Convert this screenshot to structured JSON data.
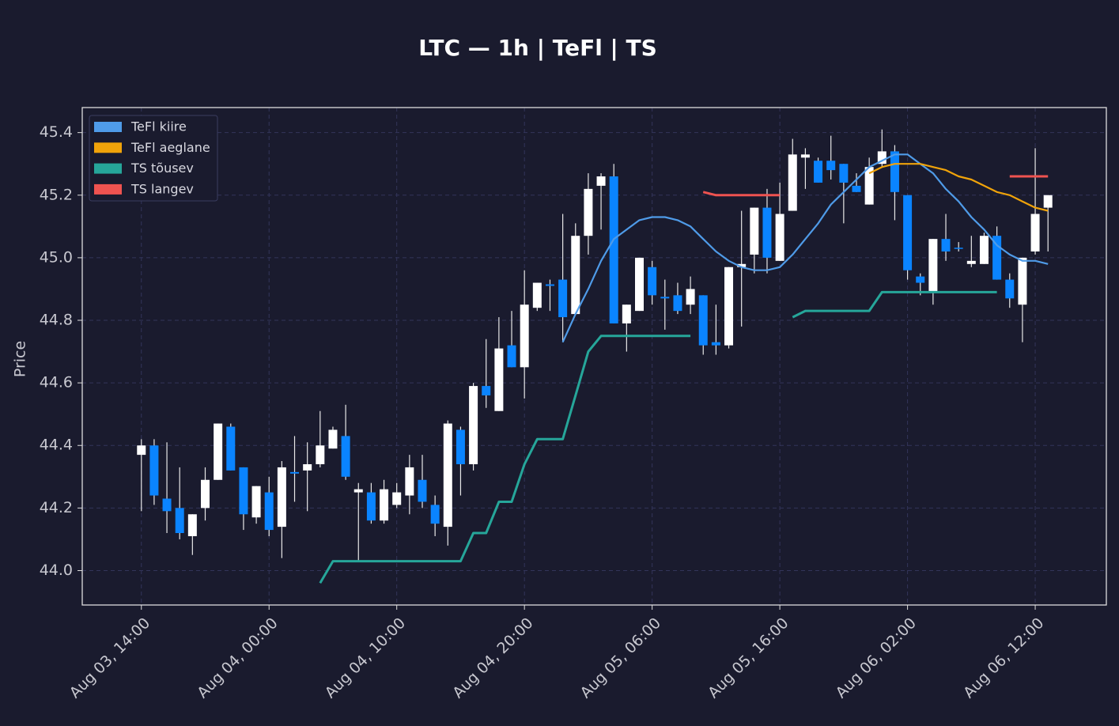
{
  "chart_data": {
    "type": "candlestick",
    "title": "LTC — 1h  |  TeFl  |  TS",
    "ylabel": "Price",
    "x": [
      "Aug 03, 14:00",
      "Aug 03, 15:00",
      "Aug 03, 16:00",
      "Aug 03, 17:00",
      "Aug 03, 18:00",
      "Aug 03, 19:00",
      "Aug 03, 20:00",
      "Aug 03, 21:00",
      "Aug 03, 22:00",
      "Aug 03, 23:00",
      "Aug 04, 00:00",
      "Aug 04, 01:00",
      "Aug 04, 02:00",
      "Aug 04, 03:00",
      "Aug 04, 04:00",
      "Aug 04, 05:00",
      "Aug 04, 06:00",
      "Aug 04, 07:00",
      "Aug 04, 08:00",
      "Aug 04, 09:00",
      "Aug 04, 10:00",
      "Aug 04, 11:00",
      "Aug 04, 12:00",
      "Aug 04, 13:00",
      "Aug 04, 14:00",
      "Aug 04, 15:00",
      "Aug 04, 16:00",
      "Aug 04, 17:00",
      "Aug 04, 18:00",
      "Aug 04, 19:00",
      "Aug 04, 20:00",
      "Aug 04, 21:00",
      "Aug 04, 22:00",
      "Aug 04, 23:00",
      "Aug 05, 00:00",
      "Aug 05, 01:00",
      "Aug 05, 02:00",
      "Aug 05, 03:00",
      "Aug 05, 04:00",
      "Aug 05, 05:00",
      "Aug 05, 06:00",
      "Aug 05, 07:00",
      "Aug 05, 08:00",
      "Aug 05, 09:00",
      "Aug 05, 10:00",
      "Aug 05, 11:00",
      "Aug 05, 12:00",
      "Aug 05, 13:00",
      "Aug 05, 14:00",
      "Aug 05, 15:00",
      "Aug 05, 16:00",
      "Aug 05, 17:00",
      "Aug 05, 18:00",
      "Aug 05, 19:00",
      "Aug 05, 20:00",
      "Aug 05, 21:00",
      "Aug 05, 22:00",
      "Aug 05, 23:00",
      "Aug 06, 00:00",
      "Aug 06, 01:00",
      "Aug 06, 02:00",
      "Aug 06, 03:00",
      "Aug 06, 04:00",
      "Aug 06, 05:00",
      "Aug 06, 06:00",
      "Aug 06, 07:00",
      "Aug 06, 08:00",
      "Aug 06, 09:00",
      "Aug 06, 10:00",
      "Aug 06, 11:00",
      "Aug 06, 12:00",
      "Aug 06, 13:00"
    ],
    "open": [
      44.37,
      44.4,
      44.23,
      44.2,
      44.11,
      44.2,
      44.29,
      44.46,
      44.33,
      44.17,
      44.25,
      44.14,
      44.315,
      44.32,
      44.34,
      44.39,
      44.43,
      44.25,
      44.25,
      44.16,
      44.21,
      44.24,
      44.29,
      44.21,
      44.14,
      44.45,
      44.34,
      44.59,
      44.51,
      44.72,
      44.65,
      44.84,
      44.915,
      44.93,
      44.82,
      45.07,
      45.23,
      45.26,
      44.79,
      44.83,
      44.97,
      44.875,
      44.88,
      44.85,
      44.88,
      44.73,
      44.72,
      44.97,
      45.01,
      45.16,
      44.99,
      45.15,
      45.32,
      45.31,
      45.31,
      45.3,
      45.23,
      45.17,
      45.3,
      45.34,
      45.2,
      44.94,
      44.89,
      45.06,
      45.032,
      44.98,
      44.98,
      45.07,
      44.93,
      44.85,
      45.02,
      45.16
    ],
    "high": [
      44.42,
      44.42,
      44.41,
      44.33,
      44.18,
      44.33,
      44.47,
      44.47,
      44.33,
      44.27,
      44.3,
      44.35,
      44.43,
      44.41,
      44.51,
      44.46,
      44.53,
      44.28,
      44.28,
      44.29,
      44.28,
      44.37,
      44.37,
      44.24,
      44.48,
      44.46,
      44.6,
      44.74,
      44.81,
      44.83,
      44.96,
      44.92,
      44.93,
      45.14,
      45.11,
      45.27,
      45.27,
      45.3,
      44.85,
      45.0,
      44.99,
      44.93,
      44.92,
      44.94,
      44.88,
      44.85,
      44.97,
      45.15,
      45.16,
      45.22,
      45.24,
      45.38,
      45.35,
      45.32,
      45.39,
      45.3,
      45.27,
      45.32,
      45.41,
      45.36,
      45.2,
      44.95,
      45.06,
      45.14,
      45.05,
      45.07,
      45.08,
      45.1,
      44.95,
      45.0,
      45.35,
      45.2
    ],
    "low": [
      44.19,
      44.21,
      44.12,
      44.1,
      44.05,
      44.16,
      44.29,
      44.32,
      44.13,
      44.15,
      44.11,
      44.04,
      44.22,
      44.19,
      44.33,
      44.39,
      44.29,
      44.03,
      44.15,
      44.15,
      44.2,
      44.18,
      44.2,
      44.11,
      44.08,
      44.24,
      44.32,
      44.52,
      44.51,
      44.65,
      44.55,
      44.83,
      44.83,
      44.73,
      44.82,
      45.01,
      45.09,
      44.79,
      44.7,
      44.83,
      44.85,
      44.77,
      44.82,
      44.82,
      44.69,
      44.69,
      44.71,
      44.78,
      44.95,
      44.95,
      44.99,
      45.15,
      45.22,
      45.24,
      45.25,
      45.11,
      45.21,
      45.17,
      45.29,
      45.12,
      44.93,
      44.88,
      44.85,
      44.99,
      45.02,
      44.97,
      44.98,
      44.93,
      44.84,
      44.73,
      45.01,
      45.02
    ],
    "close": [
      44.4,
      44.24,
      44.19,
      44.12,
      44.18,
      44.29,
      44.47,
      44.32,
      44.18,
      44.27,
      44.13,
      44.33,
      44.31,
      44.34,
      44.4,
      44.45,
      44.3,
      44.26,
      44.16,
      44.26,
      44.25,
      44.33,
      44.22,
      44.15,
      44.47,
      44.34,
      44.59,
      44.56,
      44.71,
      44.65,
      44.85,
      44.92,
      44.91,
      44.81,
      45.07,
      45.22,
      45.26,
      44.79,
      44.85,
      45.0,
      44.88,
      44.87,
      44.83,
      44.9,
      44.72,
      44.72,
      44.97,
      44.98,
      45.16,
      45.0,
      45.14,
      45.33,
      45.33,
      45.24,
      45.28,
      45.24,
      45.21,
      45.29,
      45.34,
      45.21,
      44.96,
      44.92,
      45.06,
      45.02,
      45.03,
      44.99,
      45.07,
      44.93,
      44.87,
      45.0,
      45.14,
      45.2
    ],
    "up_color": "#ffffff",
    "down_color": "#0a84ff",
    "series": [
      {
        "name": "TeFl kiire",
        "color": "#4f9be8",
        "values": [
          null,
          null,
          null,
          null,
          null,
          null,
          null,
          null,
          null,
          null,
          null,
          null,
          null,
          null,
          null,
          null,
          null,
          null,
          null,
          null,
          null,
          null,
          null,
          null,
          null,
          null,
          null,
          null,
          null,
          null,
          null,
          null,
          null,
          44.73,
          44.82,
          44.9,
          44.99,
          45.06,
          45.09,
          45.12,
          45.13,
          45.13,
          45.12,
          45.1,
          45.06,
          45.02,
          44.99,
          44.97,
          44.96,
          44.96,
          44.97,
          45.01,
          45.06,
          45.11,
          45.17,
          45.21,
          45.25,
          45.29,
          45.31,
          45.33,
          45.33,
          45.3,
          45.27,
          45.22,
          45.18,
          45.13,
          45.09,
          45.04,
          45.01,
          44.99,
          44.99,
          44.98
        ]
      },
      {
        "name": "TeFl aeglane",
        "color": "#f0a30a",
        "values": [
          null,
          null,
          null,
          null,
          null,
          null,
          null,
          null,
          null,
          null,
          null,
          null,
          null,
          null,
          null,
          null,
          null,
          null,
          null,
          null,
          null,
          null,
          null,
          null,
          null,
          null,
          null,
          null,
          null,
          null,
          null,
          null,
          null,
          null,
          null,
          null,
          null,
          null,
          null,
          null,
          null,
          null,
          null,
          null,
          null,
          null,
          null,
          null,
          null,
          null,
          null,
          null,
          null,
          null,
          null,
          null,
          null,
          45.27,
          45.29,
          45.3,
          45.3,
          45.3,
          45.29,
          45.28,
          45.26,
          45.25,
          45.23,
          45.21,
          45.2,
          45.18,
          45.16,
          45.15
        ]
      },
      {
        "name": "TS tõusev",
        "color": "#26a69a",
        "values": [
          null,
          null,
          null,
          null,
          null,
          null,
          null,
          null,
          null,
          null,
          null,
          null,
          null,
          null,
          43.96,
          44.03,
          44.03,
          44.03,
          44.03,
          44.03,
          44.03,
          44.03,
          44.03,
          44.03,
          44.03,
          44.03,
          44.12,
          44.12,
          44.22,
          44.22,
          44.34,
          44.42,
          44.42,
          44.42,
          44.56,
          44.7,
          44.75,
          44.75,
          44.75,
          44.75,
          44.75,
          44.75,
          44.75,
          44.75,
          null,
          null,
          null,
          null,
          null,
          null,
          null,
          44.81,
          44.83,
          44.83,
          44.83,
          44.83,
          44.83,
          44.83,
          44.89,
          44.89,
          44.89,
          44.89,
          44.89,
          44.89,
          44.89,
          44.89,
          44.89,
          44.89,
          null,
          null,
          null,
          null
        ]
      },
      {
        "name": "TS langev",
        "color": "#ef5350",
        "values": [
          null,
          null,
          null,
          null,
          null,
          null,
          null,
          null,
          null,
          null,
          null,
          null,
          null,
          null,
          null,
          null,
          null,
          null,
          null,
          null,
          null,
          null,
          null,
          null,
          null,
          null,
          null,
          null,
          null,
          null,
          null,
          null,
          null,
          null,
          null,
          null,
          null,
          null,
          null,
          null,
          null,
          null,
          null,
          null,
          45.21,
          45.2,
          45.2,
          45.2,
          45.2,
          45.2,
          45.2,
          null,
          null,
          null,
          null,
          null,
          null,
          null,
          null,
          null,
          null,
          null,
          null,
          null,
          null,
          null,
          null,
          null,
          45.26,
          45.26,
          45.26,
          45.26
        ]
      }
    ],
    "ylim": [
      43.89,
      45.48
    ],
    "yticks": [
      {
        "value": 44,
        "label": "44.0"
      },
      44.2,
      44.4,
      44.6,
      44.8,
      {
        "value": 45,
        "label": "45.0"
      },
      45.2,
      45.4
    ],
    "xticks": [
      "Aug 03, 14:00",
      "Aug 04, 00:00",
      "Aug 04, 10:00",
      "Aug 04, 20:00",
      "Aug 05, 06:00",
      "Aug 05, 16:00",
      "Aug 06, 02:00",
      "Aug 06, 12:00"
    ],
    "grid": true,
    "legend": "upper left"
  }
}
